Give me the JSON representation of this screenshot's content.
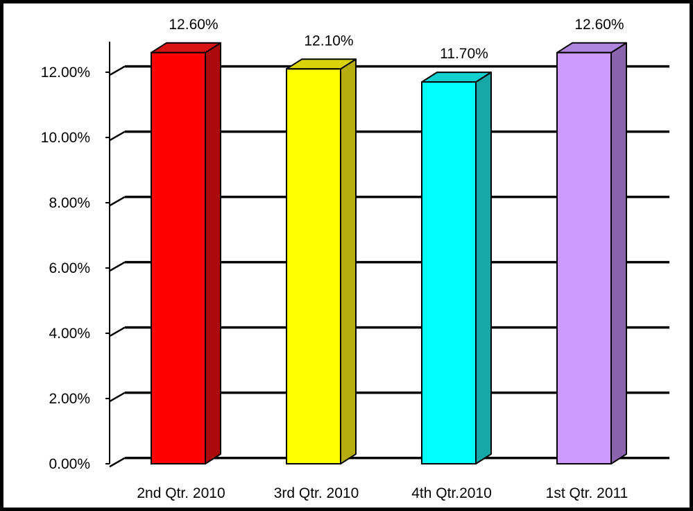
{
  "chart_data": {
    "type": "bar",
    "categories": [
      "2nd Qtr. 2010",
      "3rd Qtr. 2010",
      "4th Qtr.2010",
      "1st Qtr. 2011"
    ],
    "values": [
      12.6,
      12.1,
      11.7,
      12.6
    ],
    "data_labels": [
      "12.60%",
      "12.10%",
      "11.70%",
      "12.60%"
    ],
    "y_tick_values": [
      0,
      2,
      4,
      6,
      8,
      10,
      12
    ],
    "y_tick_labels": [
      "0.00%",
      "2.00%",
      "4.00%",
      "6.00%",
      "8.00%",
      "10.00%",
      "12.00%"
    ],
    "ylim": [
      0,
      12.6
    ],
    "grid": true,
    "legend": "none",
    "bar_colors": [
      {
        "front": "#ff0000",
        "side": "#aa0a0a",
        "top": "#d81515"
      },
      {
        "front": "#ffff00",
        "side": "#b5ad0d",
        "top": "#d9d40a"
      },
      {
        "front": "#00ffff",
        "side": "#16a7a7",
        "top": "#12d0d0"
      },
      {
        "front": "#cc99ff",
        "side": "#8a64ad",
        "top": "#b085dd"
      }
    ],
    "title": "",
    "xlabel": "",
    "ylabel": ""
  }
}
